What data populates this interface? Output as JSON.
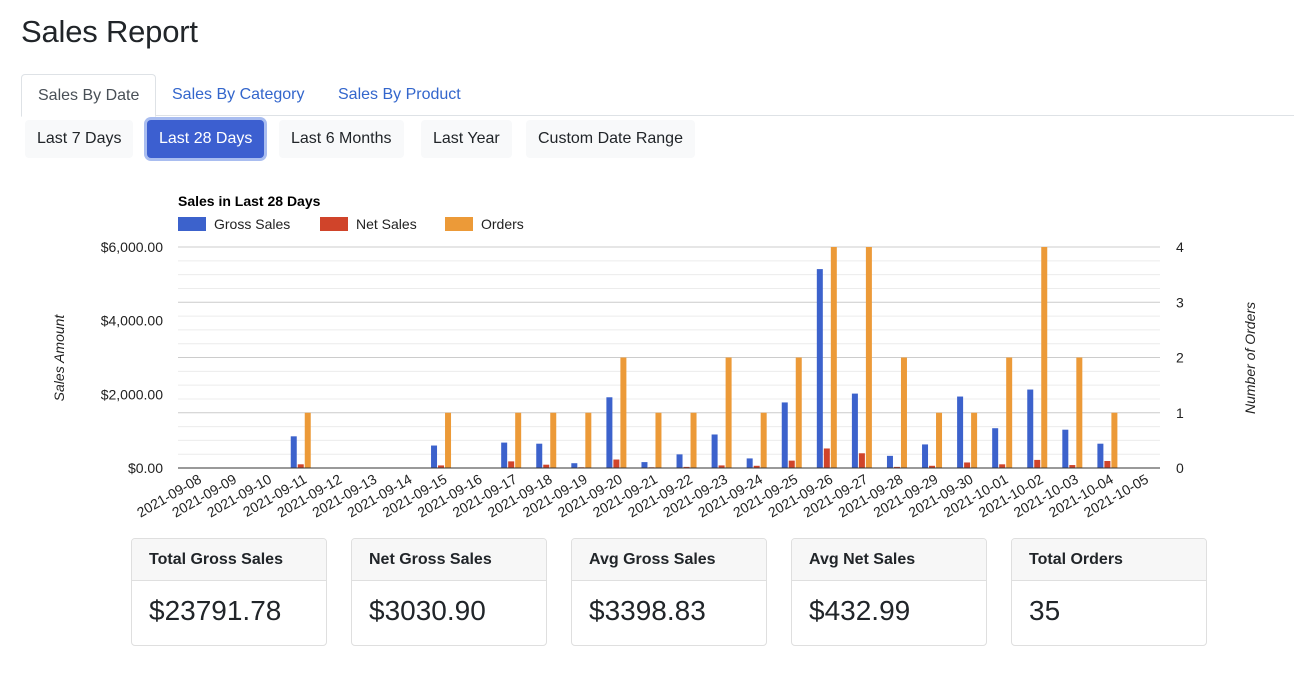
{
  "page": {
    "title": "Sales Report"
  },
  "tabs": [
    {
      "label": "Sales By Date",
      "active": true
    },
    {
      "label": "Sales By Category",
      "active": false
    },
    {
      "label": "Sales By Product",
      "active": false
    }
  ],
  "ranges": [
    {
      "label": "Last 7 Days",
      "active": false
    },
    {
      "label": "Last 28 Days",
      "active": true
    },
    {
      "label": "Last 6 Months",
      "active": false
    },
    {
      "label": "Last Year",
      "active": false
    },
    {
      "label": "Custom Date Range",
      "active": false
    }
  ],
  "chart_data": {
    "type": "bar",
    "title": "Sales in Last 28 Days",
    "ylabel": "Sales Amount",
    "y2label": "Number of Orders",
    "ylim": [
      0,
      6000
    ],
    "y2lim": [
      0,
      4
    ],
    "y_ticks": [
      "$0.00",
      "$2,000.00",
      "$4,000.00",
      "$6,000.00"
    ],
    "y2_ticks": [
      "0",
      "1",
      "2",
      "3",
      "4"
    ],
    "legend_position": "top-left",
    "grid": true,
    "categories": [
      "2021-09-08",
      "2021-09-09",
      "2021-09-10",
      "2021-09-11",
      "2021-09-12",
      "2021-09-13",
      "2021-09-14",
      "2021-09-15",
      "2021-09-16",
      "2021-09-17",
      "2021-09-18",
      "2021-09-19",
      "2021-09-20",
      "2021-09-21",
      "2021-09-22",
      "2021-09-23",
      "2021-09-24",
      "2021-09-25",
      "2021-09-26",
      "2021-09-27",
      "2021-09-28",
      "2021-09-29",
      "2021-09-30",
      "2021-10-01",
      "2021-10-02",
      "2021-10-03",
      "2021-10-04",
      "2021-10-05"
    ],
    "series": [
      {
        "name": "Gross Sales",
        "axis": "left",
        "color": "#3c62cc",
        "values": [
          0,
          0,
          0,
          860,
          0,
          0,
          0,
          610,
          0,
          690,
          660,
          130,
          1920,
          160,
          370,
          910,
          260,
          1780,
          5400,
          2020,
          330,
          640,
          1940,
          1080,
          2130,
          1040,
          660,
          0
        ]
      },
      {
        "name": "Net Sales",
        "axis": "left",
        "color": "#d0442a",
        "values": [
          0,
          0,
          0,
          100,
          0,
          0,
          0,
          70,
          0,
          180,
          90,
          20,
          230,
          20,
          30,
          70,
          60,
          200,
          530,
          400,
          30,
          60,
          150,
          100,
          220,
          80,
          190,
          0
        ]
      },
      {
        "name": "Orders",
        "axis": "right",
        "color": "#ec9a38",
        "values": [
          0,
          0,
          0,
          1,
          0,
          0,
          0,
          1,
          0,
          1,
          1,
          1,
          2,
          1,
          1,
          2,
          1,
          2,
          4,
          4,
          2,
          1,
          1,
          2,
          4,
          2,
          1,
          0
        ]
      }
    ]
  },
  "cards": [
    {
      "label": "Total Gross Sales",
      "value": "$23791.78"
    },
    {
      "label": "Net Gross Sales",
      "value": "$3030.90"
    },
    {
      "label": "Avg Gross Sales",
      "value": "$3398.83"
    },
    {
      "label": "Avg Net Sales",
      "value": "$432.99"
    },
    {
      "label": "Total Orders",
      "value": "35"
    }
  ]
}
